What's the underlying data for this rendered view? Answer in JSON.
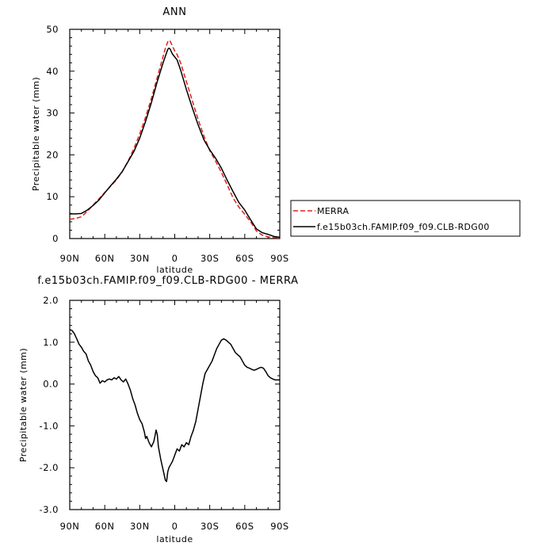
{
  "chart_data": [
    {
      "type": "line",
      "title": "ANN",
      "xlabel": "latitude",
      "ylabel": "Precipitable water (mm)",
      "xlim": [
        90,
        -90
      ],
      "ylim": [
        0,
        50
      ],
      "x_ticks": [
        90,
        60,
        30,
        0,
        -30,
        -60,
        -90
      ],
      "x_tick_labels": [
        "90N",
        "60N",
        "30N",
        "0",
        "30S",
        "60S",
        "90S"
      ],
      "y_ticks": [
        0,
        10,
        20,
        30,
        40,
        50
      ],
      "y_tick_labels": [
        "0",
        "10",
        "20",
        "30",
        "40",
        "50"
      ],
      "grid": false,
      "legend_position": "right, outside plot",
      "series": [
        {
          "name": "MERRA",
          "color": "#e0201b",
          "style": "dashed",
          "x": [
            90,
            85,
            80,
            75,
            70,
            65,
            60,
            55,
            50,
            45,
            40,
            35,
            30,
            25,
            20,
            15,
            10,
            8,
            6,
            5,
            4,
            2,
            0,
            -2,
            -5,
            -10,
            -15,
            -20,
            -25,
            -30,
            -35,
            -40,
            -45,
            -50,
            -55,
            -60,
            -65,
            -70,
            -75,
            -80,
            -85,
            -90
          ],
          "y": [
            4.6,
            4.8,
            5.2,
            6.5,
            8.0,
            9.5,
            11.0,
            12.5,
            14.0,
            16.0,
            18.5,
            21.5,
            25.0,
            29.0,
            33.5,
            38.5,
            43.5,
            45.5,
            47.0,
            47.4,
            47.2,
            46.0,
            44.8,
            44.0,
            42.0,
            37.5,
            33.0,
            28.5,
            24.5,
            21.0,
            18.5,
            15.8,
            12.8,
            9.7,
            7.5,
            5.8,
            4.0,
            1.8,
            0.8,
            0.4,
            0.2,
            0.2
          ]
        },
        {
          "name": "f.e15b03ch.FAMIP.f09_f09.CLB-RDG00",
          "color": "#000000",
          "style": "solid",
          "x": [
            90,
            85,
            80,
            75,
            70,
            65,
            60,
            55,
            50,
            45,
            40,
            35,
            30,
            25,
            20,
            15,
            10,
            8,
            6,
            5,
            4,
            2,
            0,
            -2,
            -5,
            -10,
            -15,
            -20,
            -25,
            -30,
            -35,
            -40,
            -45,
            -50,
            -55,
            -60,
            -65,
            -70,
            -75,
            -80,
            -85,
            -90
          ],
          "y": [
            5.9,
            5.9,
            6.0,
            6.8,
            7.9,
            9.2,
            10.9,
            12.6,
            14.2,
            16.0,
            18.4,
            20.8,
            24.0,
            28.0,
            32.5,
            37.5,
            42.0,
            43.6,
            45.2,
            45.5,
            45.3,
            44.1,
            43.4,
            42.7,
            40.3,
            35.6,
            31.3,
            27.2,
            23.6,
            21.2,
            19.2,
            16.8,
            13.9,
            11.2,
            8.6,
            6.8,
            4.5,
            2.3,
            1.4,
            1.0,
            0.5,
            0.3
          ]
        }
      ]
    },
    {
      "type": "line",
      "title": "f.e15b03ch.FAMIP.f09_f09.CLB-RDG00  -  MERRA",
      "xlabel": "latitude",
      "ylabel": "Precipitable water (mm)",
      "xlim": [
        90,
        -90
      ],
      "ylim": [
        -3.0,
        2.0
      ],
      "x_ticks": [
        90,
        60,
        30,
        0,
        -30,
        -60,
        -90
      ],
      "x_tick_labels": [
        "90N",
        "60N",
        "30N",
        "0",
        "30S",
        "60S",
        "90S"
      ],
      "y_ticks": [
        -3.0,
        -2.0,
        -1.0,
        0.0,
        1.0,
        2.0
      ],
      "y_tick_labels": [
        "-3.0",
        "-2.0",
        "-1.0",
        "0.0",
        "1.0",
        "2.0"
      ],
      "grid": false,
      "series": [
        {
          "color": "#000000",
          "style": "solid",
          "x": [
            90,
            88,
            86,
            84,
            82,
            80,
            78,
            76,
            74,
            72,
            70,
            68,
            66,
            64,
            62,
            60,
            58,
            56,
            54,
            52,
            50,
            48,
            46,
            44,
            42,
            40,
            38,
            36,
            34,
            32,
            30,
            28,
            26,
            25,
            24,
            22,
            20,
            18,
            17,
            16,
            15,
            14,
            12,
            10,
            8,
            7,
            6,
            5,
            4,
            2,
            0,
            -2,
            -4,
            -6,
            -8,
            -10,
            -12,
            -14,
            -16,
            -18,
            -20,
            -22,
            -24,
            -26,
            -28,
            -30,
            -32,
            -34,
            -36,
            -38,
            -40,
            -42,
            -44,
            -46,
            -48,
            -50,
            -52,
            -54,
            -56,
            -58,
            -60,
            -62,
            -64,
            -66,
            -68,
            -70,
            -72,
            -74,
            -76,
            -78,
            -80,
            -82,
            -84,
            -86,
            -88,
            -90
          ],
          "y": [
            1.3,
            1.28,
            1.2,
            1.08,
            0.95,
            0.88,
            0.78,
            0.72,
            0.55,
            0.45,
            0.3,
            0.2,
            0.15,
            0.02,
            0.08,
            0.05,
            0.1,
            0.12,
            0.1,
            0.15,
            0.12,
            0.18,
            0.1,
            0.05,
            0.12,
            0.0,
            -0.15,
            -0.35,
            -0.5,
            -0.7,
            -0.85,
            -0.95,
            -1.15,
            -1.3,
            -1.25,
            -1.4,
            -1.5,
            -1.38,
            -1.25,
            -1.1,
            -1.2,
            -1.5,
            -1.8,
            -2.05,
            -2.3,
            -2.33,
            -2.1,
            -2.0,
            -1.95,
            -1.85,
            -1.7,
            -1.55,
            -1.6,
            -1.45,
            -1.5,
            -1.4,
            -1.45,
            -1.25,
            -1.1,
            -0.9,
            -0.6,
            -0.3,
            0.0,
            0.25,
            0.35,
            0.45,
            0.55,
            0.7,
            0.85,
            0.95,
            1.05,
            1.08,
            1.05,
            1.0,
            0.95,
            0.85,
            0.75,
            0.7,
            0.65,
            0.55,
            0.45,
            0.4,
            0.38,
            0.35,
            0.33,
            0.35,
            0.38,
            0.4,
            0.38,
            0.3,
            0.2,
            0.15,
            0.12,
            0.1,
            0.1,
            0.1
          ]
        }
      ]
    }
  ]
}
